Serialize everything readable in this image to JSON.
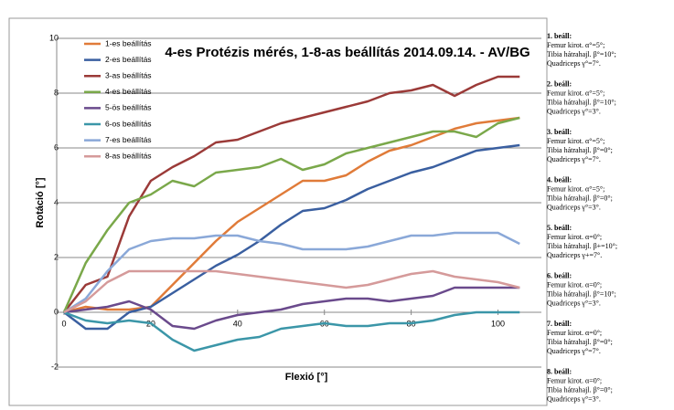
{
  "chart_data": {
    "type": "line",
    "title": "4-es Protézis mérés, 1-8-as beállítás 2014.09.14. - AV/BG",
    "x_label": "Flexió [°]",
    "y_label": "Rotáció [°]",
    "x": [
      0,
      5,
      10,
      15,
      20,
      25,
      30,
      35,
      40,
      45,
      50,
      55,
      60,
      65,
      70,
      75,
      80,
      85,
      90,
      95,
      100,
      105
    ],
    "xlim": [
      0,
      110
    ],
    "xticks": [
      0,
      20,
      40,
      60,
      80,
      100
    ],
    "ylim": [
      -2,
      10
    ],
    "yticks": [
      -2,
      0,
      2,
      4,
      6,
      8,
      10
    ],
    "grid": true,
    "legend": "upper left",
    "series": [
      {
        "name": "1-es beállítás",
        "color": "#e07b39",
        "values": [
          0,
          0.2,
          0.1,
          0.1,
          0.2,
          1.0,
          1.8,
          2.6,
          3.3,
          3.8,
          4.3,
          4.8,
          4.8,
          5.0,
          5.5,
          5.9,
          6.1,
          6.4,
          6.7,
          6.9,
          7.0,
          7.1
        ]
      },
      {
        "name": "2-es beállítás",
        "color": "#3a5fa0",
        "values": [
          0,
          -0.6,
          -0.6,
          0,
          0.2,
          0.7,
          1.2,
          1.7,
          2.1,
          2.6,
          3.2,
          3.7,
          3.8,
          4.1,
          4.5,
          4.8,
          5.1,
          5.3,
          5.6,
          5.9,
          6.0,
          6.1
        ]
      },
      {
        "name": "3-as beállítás",
        "color": "#9b3a38",
        "values": [
          0,
          1.0,
          1.3,
          3.5,
          4.8,
          5.3,
          5.7,
          6.2,
          6.3,
          6.6,
          6.9,
          7.1,
          7.3,
          7.5,
          7.7,
          8.0,
          8.1,
          8.3,
          7.9,
          8.3,
          8.6,
          8.6
        ]
      },
      {
        "name": "4-es beállítás",
        "color": "#7aa84a",
        "values": [
          0,
          1.8,
          3.0,
          4.0,
          4.3,
          4.8,
          4.6,
          5.1,
          5.2,
          5.3,
          5.6,
          5.2,
          5.4,
          5.8,
          6.0,
          6.2,
          6.4,
          6.6,
          6.6,
          6.4,
          6.9,
          7.1
        ]
      },
      {
        "name": "5-ös beállítás",
        "color": "#6a4a8c",
        "values": [
          0,
          0.1,
          0.2,
          0.4,
          0.1,
          -0.5,
          -0.6,
          -0.3,
          -0.1,
          0,
          0.1,
          0.3,
          0.4,
          0.5,
          0.5,
          0.4,
          0.5,
          0.6,
          0.9,
          0.9,
          0.9,
          0.9
        ]
      },
      {
        "name": "6-os beállítás",
        "color": "#3b96a8",
        "values": [
          0,
          -0.3,
          -0.4,
          -0.3,
          -0.4,
          -1.0,
          -1.4,
          -1.2,
          -1.0,
          -0.9,
          -0.6,
          -0.5,
          -0.4,
          -0.5,
          -0.5,
          -0.4,
          -0.4,
          -0.3,
          -0.1,
          0,
          0,
          0
        ]
      },
      {
        "name": "7-es beállítás",
        "color": "#8aa8d8",
        "values": [
          0,
          0.5,
          1.5,
          2.3,
          2.6,
          2.7,
          2.7,
          2.8,
          2.8,
          2.6,
          2.5,
          2.3,
          2.3,
          2.3,
          2.4,
          2.6,
          2.8,
          2.8,
          2.9,
          2.9,
          2.9,
          2.5
        ]
      },
      {
        "name": "8-as beállítás",
        "color": "#d59a9a",
        "values": [
          0,
          0.4,
          1.1,
          1.5,
          1.5,
          1.5,
          1.5,
          1.5,
          1.4,
          1.3,
          1.2,
          1.1,
          1.0,
          0.9,
          1.0,
          1.2,
          1.4,
          1.5,
          1.3,
          1.2,
          1.1,
          0.9
        ]
      }
    ],
    "annotations": [
      [
        "1. beáll:",
        "Femur kirot. α°=5°;",
        "Tibia hátrahajl. β°=10°;",
        "Quadriceps γ°=7°."
      ],
      [
        "2. beáll:",
        "Femur kirot. α°=5°;",
        "Tibia hátrahajl. β°=10°;",
        "Quadriceps γ°=3°."
      ],
      [
        "3. beáll:",
        "Femur kirot. α°=5°;",
        "Tibia hátrahajl. β°=0°;",
        "Quadriceps γ°=7°."
      ],
      [
        "4. beáll:",
        "Femur kirot. α°=5°;",
        "Tibia hátrahajl. β°=0°;",
        "Quadriceps γ°=3°."
      ],
      [
        "5. beáll:",
        "Femur kirot. α=0°;",
        "Tibia hátrahajl. β+=10°;",
        "Quadriceps γ+=7°."
      ],
      [
        "6. beáll:",
        "Femur kirot. α=0°;",
        "Tibia hátrahajl. β°=10°;",
        "Quadriceps γ°=3°."
      ],
      [
        "7. beáll:",
        "Femur kirot. α=0°;",
        "Tibia hátrahajl. β°=0°;",
        "Quadriceps γ°=7°."
      ],
      [
        "8. beáll:",
        "Femur kirot. α=0°;",
        "Tibia hátrahajl. β°=0°;",
        "Quadriceps γ°=3°."
      ]
    ]
  }
}
